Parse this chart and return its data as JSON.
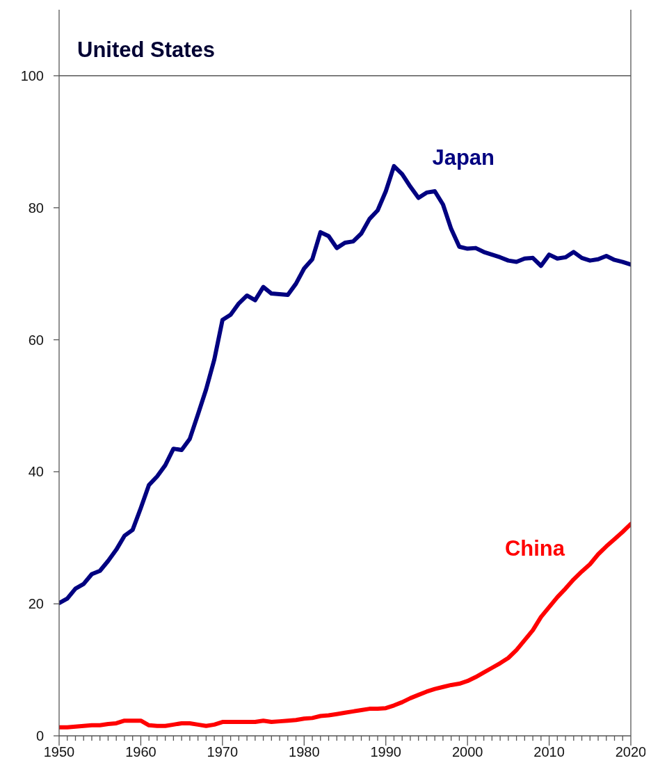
{
  "chart_data": {
    "type": "line",
    "x": [
      1950,
      1951,
      1952,
      1953,
      1954,
      1955,
      1956,
      1957,
      1958,
      1959,
      1960,
      1961,
      1962,
      1963,
      1964,
      1965,
      1966,
      1967,
      1968,
      1969,
      1970,
      1971,
      1972,
      1973,
      1974,
      1975,
      1976,
      1977,
      1978,
      1979,
      1980,
      1981,
      1982,
      1983,
      1984,
      1985,
      1986,
      1987,
      1988,
      1989,
      1990,
      1991,
      1992,
      1993,
      1994,
      1995,
      1996,
      1997,
      1998,
      1999,
      2000,
      2001,
      2002,
      2003,
      2004,
      2005,
      2006,
      2007,
      2008,
      2009,
      2010,
      2011,
      2012,
      2013,
      2014,
      2015,
      2016,
      2017,
      2018,
      2019,
      2020
    ],
    "series": [
      {
        "name": "Japan",
        "color": "#000080",
        "values": [
          20.1,
          20.8,
          22.3,
          23.0,
          24.5,
          25.0,
          26.5,
          28.2,
          30.3,
          31.2,
          34.5,
          38.0,
          39.3,
          41.0,
          43.5,
          43.3,
          45.0,
          48.7,
          52.5,
          57.0,
          63.0,
          63.8,
          65.5,
          66.7,
          66.0,
          68.0,
          67.0,
          66.9,
          66.8,
          68.5,
          70.8,
          72.2,
          76.3,
          75.7,
          73.9,
          74.7,
          74.9,
          76.1,
          78.3,
          79.6,
          82.5,
          86.3,
          85.1,
          83.2,
          81.5,
          82.3,
          82.5,
          80.5,
          76.8,
          74.1,
          73.8,
          73.9,
          73.3,
          72.9,
          72.5,
          72.0,
          71.8,
          72.3,
          72.4,
          71.2,
          72.9,
          72.3,
          72.5,
          73.3,
          72.4,
          72.0,
          72.2,
          72.7,
          72.1,
          71.8,
          71.4
        ]
      },
      {
        "name": "China",
        "color": "#ff0000",
        "values": [
          1.3,
          1.3,
          1.4,
          1.5,
          1.6,
          1.6,
          1.8,
          1.9,
          2.3,
          2.3,
          2.3,
          1.6,
          1.5,
          1.5,
          1.7,
          1.9,
          1.9,
          1.7,
          1.5,
          1.7,
          2.1,
          2.1,
          2.1,
          2.1,
          2.1,
          2.3,
          2.1,
          2.2,
          2.3,
          2.4,
          2.6,
          2.7,
          3.0,
          3.1,
          3.3,
          3.5,
          3.7,
          3.9,
          4.1,
          4.1,
          4.2,
          4.6,
          5.1,
          5.7,
          6.2,
          6.7,
          7.1,
          7.4,
          7.7,
          7.9,
          8.3,
          8.9,
          9.6,
          10.3,
          11.0,
          11.8,
          13.0,
          14.5,
          16.0,
          18.0,
          19.5,
          21.0,
          22.3,
          23.7,
          24.9,
          26.0,
          27.5,
          28.7,
          29.8,
          30.9,
          32.1
        ]
      }
    ],
    "ref_lines": [
      {
        "axis": "y",
        "value": 100,
        "label": "United States"
      }
    ],
    "xlim": [
      1950,
      2020
    ],
    "xticks": [
      1950,
      {
        "value": 1951,
        "label": null
      },
      {
        "value": 1952,
        "label": null
      },
      {
        "value": 1953,
        "label": null
      },
      {
        "value": 1954,
        "label": null
      },
      {
        "value": 1955,
        "label": null
      },
      {
        "value": 1956,
        "label": null
      },
      {
        "value": 1957,
        "label": null
      },
      {
        "value": 1958,
        "label": null
      },
      {
        "value": 1959,
        "label": null
      },
      1960,
      {
        "value": 1961,
        "label": null
      },
      {
        "value": 1962,
        "label": null
      },
      {
        "value": 1963,
        "label": null
      },
      {
        "value": 1964,
        "label": null
      },
      {
        "value": 1965,
        "label": null
      },
      {
        "value": 1966,
        "label": null
      },
      {
        "value": 1967,
        "label": null
      },
      {
        "value": 1968,
        "label": null
      },
      {
        "value": 1969,
        "label": null
      },
      1970,
      {
        "value": 1971,
        "label": null
      },
      {
        "value": 1972,
        "label": null
      },
      {
        "value": 1973,
        "label": null
      },
      {
        "value": 1974,
        "label": null
      },
      {
        "value": 1975,
        "label": null
      },
      {
        "value": 1976,
        "label": null
      },
      {
        "value": 1977,
        "label": null
      },
      {
        "value": 1978,
        "label": null
      },
      {
        "value": 1979,
        "label": null
      },
      1980,
      {
        "value": 1981,
        "label": null
      },
      {
        "value": 1982,
        "label": null
      },
      {
        "value": 1983,
        "label": null
      },
      {
        "value": 1984,
        "label": null
      },
      {
        "value": 1985,
        "label": null
      },
      {
        "value": 1986,
        "label": null
      },
      {
        "value": 1987,
        "label": null
      },
      {
        "value": 1988,
        "label": null
      },
      {
        "value": 1989,
        "label": null
      },
      1990,
      {
        "value": 1991,
        "label": null
      },
      {
        "value": 1992,
        "label": null
      },
      {
        "value": 1993,
        "label": null
      },
      {
        "value": 1994,
        "label": null
      },
      {
        "value": 1995,
        "label": null
      },
      {
        "value": 1996,
        "label": null
      },
      {
        "value": 1997,
        "label": null
      },
      {
        "value": 1998,
        "label": null
      },
      {
        "value": 1999,
        "label": null
      },
      2000,
      {
        "value": 2001,
        "label": null
      },
      {
        "value": 2002,
        "label": null
      },
      {
        "value": 2003,
        "label": null
      },
      {
        "value": 2004,
        "label": null
      },
      {
        "value": 2005,
        "label": null
      },
      {
        "value": 2006,
        "label": null
      },
      {
        "value": 2007,
        "label": null
      },
      {
        "value": 2008,
        "label": null
      },
      {
        "value": 2009,
        "label": null
      },
      2010,
      {
        "value": 2011,
        "label": null
      },
      {
        "value": 2012,
        "label": null
      },
      {
        "value": 2013,
        "label": null
      },
      {
        "value": 2014,
        "label": null
      },
      {
        "value": 2015,
        "label": null
      },
      {
        "value": 2016,
        "label": null
      },
      {
        "value": 2017,
        "label": null
      },
      {
        "value": 2018,
        "label": null
      },
      {
        "value": 2019,
        "label": null
      },
      2020
    ],
    "ylim": [
      0,
      110
    ],
    "yticks": [
      0,
      20,
      40,
      60,
      80,
      100
    ],
    "marker": "none",
    "line_style": "solid"
  }
}
